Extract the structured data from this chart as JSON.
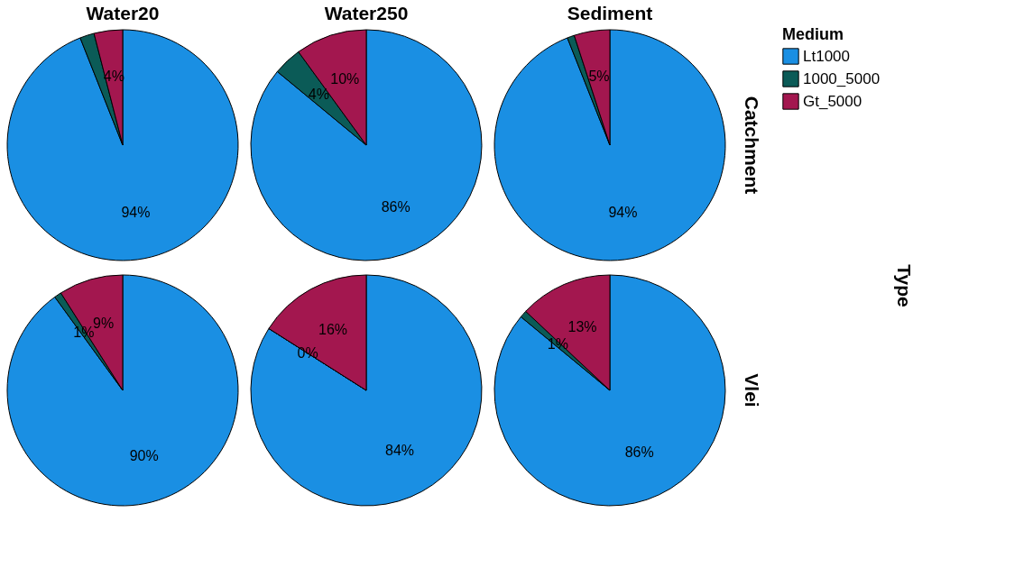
{
  "chart_data": [
    {
      "type": "pie",
      "title": "Water20",
      "legend": "right",
      "legend_title": "Medium",
      "categories": [
        "Lt1000",
        "1000_5000",
        "Gt_5000"
      ],
      "values": [
        94,
        2,
        4
      ],
      "value_labels": [
        "94%",
        null,
        "4%"
      ],
      "colors": [
        "#1a8fe3",
        "#0b5b57",
        "#a3174f"
      ]
    },
    {
      "type": "pie",
      "title": "Water250",
      "values": [
        86,
        4,
        10
      ],
      "value_labels": [
        "86%",
        "4%",
        "10%"
      ],
      "colors": [
        "#1a8fe3",
        "#0b5b57",
        "#a3174f"
      ]
    },
    {
      "type": "pie",
      "title": "Sediment",
      "y2label": "Catchment",
      "values": [
        94,
        1,
        5
      ],
      "value_labels": [
        "94%",
        null,
        "5%"
      ],
      "colors": [
        "#1a8fe3",
        "#0b5b57",
        "#a3174f"
      ]
    },
    {
      "type": "pie",
      "values": [
        90,
        1,
        9
      ],
      "value_labels": [
        "90%",
        "1%",
        "9%"
      ],
      "colors": [
        "#1a8fe3",
        "#0b5b57",
        "#a3174f"
      ]
    },
    {
      "type": "pie",
      "values": [
        84,
        0,
        16
      ],
      "value_labels": [
        "84%",
        "0%",
        "16%"
      ],
      "colors": [
        "#1a8fe3",
        "#0b5b57",
        "#a3174f"
      ]
    },
    {
      "type": "pie",
      "y2label": "Vlei",
      "annotations": [
        "Type"
      ],
      "values": [
        86,
        1,
        13
      ],
      "value_labels": [
        "86%",
        "1%",
        "13%"
      ],
      "colors": [
        "#1a8fe3",
        "#0b5b57",
        "#a3174f"
      ]
    }
  ]
}
